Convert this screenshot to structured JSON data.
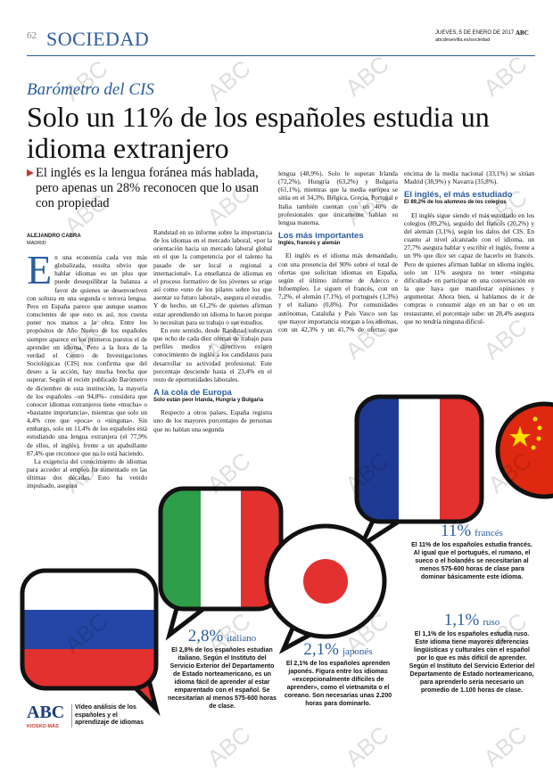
{
  "header": {
    "page_number": "62",
    "section": "SOCIEDAD",
    "date": "JUEVES, 5 DE ENERO DE 2017",
    "brand": "ABC",
    "url": "abcdesevilla.es/sociedad"
  },
  "kicker": "Barómetro del CIS",
  "headline": "Solo un 11% de los españoles estudia un idioma extranjero",
  "subhead": "El inglés es la lengua foránea más hablada, pero apenas un 28% reconocen que lo usan con propiedad",
  "byline": {
    "author": "ALEJANDRO CABRA",
    "place": "MADRID"
  },
  "watermark": "ABC",
  "body": {
    "dropcap": "E",
    "col1": [
      "n una economía cada vez más globalizada, resulta obvio que hablar idiomas es un plus que puede desequilibrar la balanza a favor de quienes se desenvuelven con soltura en una segunda o tercera lengua. Pero en España parece que aunque seamos conscientes de que esto es así, nos cuesta poner nos manos a la obra. Entre los propósitos de Año Nuevo de los españoles siempre aparece en los primeros puestos el de aprender un idioma. Pero a la hora de la verdad el Centro de Investigaciones Sociológicas (CIS) nos confirma que del deseo a la acción, hay mucha brecha que superar. Según el recién publicado Barómetro de diciembre de esta institución, la mayoría de los españoles –un 94,8%– considera que conocer idiomas extranjeros tiene «mucha» o «bastante importancia», mientras que solo un 4,4% cree que «poca» o «ninguna». Sin embargo, solo un 11,4% de los españoles está estudiando una lengua extranjera (el 77,9% de ellos, el inglés), frente a un apabullante 87,4% que reconoce que no lo está haciendo.",
      "La exigencia del conocimiento de idiomas para acceder al empleo ha aumentado en las últimas dos décadas. Esto ha venido impulsado, asegura"
    ],
    "col2": [
      "Randstad en su informe sobre la importancia de los idiomas en el mercado laboral, «por la orientación hacia un mercado laboral global en el que la competencia por el talento ha pasado de ser local o regional a internacional». La enseñanza de idiomas en el proceso formativo de los jóvenes se erige así como «uno de los pilares sobre los que asentar su futuro laboral», asegura el estudio. Y de hecho, un 61,2% de quienes afirman estar aprendiendo un idioma lo hacen porque lo necesitan para su trabajo o sus estudios.",
      "En este sentido, desde Randstad subrayan que ocho de cada diez ofertas de trabajo para perfiles medios y directivos exigen conocimiento de inglés a los candidatos para desarrollar su actividad profesional. Este porcentaje desciende hasta el 23,4% en el resto de oportunidades laborales."
    ],
    "section2": {
      "title": "A la cola de Europa",
      "subtitle": "Solo están peor Irlanda, Hungría y Bulgaria",
      "text": "Respecto a otros países, España registra uno de los mayores porcentajes de personas que no hablan una segunda"
    },
    "col3": "lengua (48,9%). Solo le superan Irlanda (72,2%), Hungría (63,2%) y Bulgaria (61,1%), mientras que la media europea se sitúa en el 34,3%. Bélgica, Grecia, Portugal e Italia también cuentan con un 40% de profesionales que únicamente hablan su lengua materna.",
    "section3": {
      "title": "Los más importantes",
      "subtitle": "Inglés, francés y alemán",
      "text": "El inglés es el idioma más demandado, con una presencia del 90% sobre el total de ofertas que solicitan idiomas en España, según el último informe de Adecco e Infoempleo. Le siguen el francés, con un 7,2%, el alemán (7,1%), el portugués (1,3%) y el italiano (0,8%). Por comunidades autónomas, Cataluña y País Vasco son las que mayor importancia otorgan a los idiomas, con un 42,3% y un 41,7% de ofertas que demandan idiomas, respectivamente. Por detrás de ellas, pero también por"
    },
    "col4": "encima de la media nacional (33,1%) se sitúan Madrid (38,9%) y Navarra (35,8%).",
    "section4": {
      "title": "El inglés, el más estudiado",
      "subtitle": "El 89,2% de los alumnos de los colegios",
      "text": "El inglés sigue siendo el más estudiado en los colegios (89,2%), seguido del francés (20,2%) y del alemán (3,1%), según los datos del CIS. En cuanto al nivel alcanzado con el idioma, un 27,7% asegura hablar y escribir el inglés, frente a un 9% que dice ser capaz de hacerlo en francés. Pero de quienes afirman hablar un idioma inglés, solo un 11% asegura no tener «ninguna dificultad» en participar en una conversación en la que haya que manifestar opiniones y argumentar. Ahora bien, si hablamos de ir de compras o consumir algo en un bar o en un restaurante, el porcentaje sube: un 28,4% asegura que no tendría ninguna dificul-"
    }
  },
  "stats": [
    {
      "value": "11%",
      "language": "francés",
      "text": "El 11% de los españoles estudia francés. Al igual que el portugués, el rumano, el sueco o el holandés se necesitarían al menos 575-600 horas de clase para dominar básicamente este idioma."
    },
    {
      "value": "1,1%",
      "language": "ruso",
      "text": "El 1,1% de los españoles estudia ruso. Este idioma tiene mayores diferencias lingüísticas y culturales con el español por lo que es más difícil de aprender. Según el Instituto del Servicio Exterior del Departamento de Estado norteamericano, para aprenderlo sería necesario un promedio de 1.100 horas de clase."
    },
    {
      "value": "2,8%",
      "language": "italiano",
      "text": "El 2,8% de los españoles estudian italiano. Según el Instituto del Servicio Exterior del Departamento de Estado norteamericano, es un idioma fácil de aprender al estar emparentado con el español. Se necesitarían al menos 575-600 horas de clase."
    },
    {
      "value": "2,1%",
      "language": "japonés",
      "text": "El 2,1% de los españoles aprenden japonés. Figura entre los idiomas «excepcionalmente difíciles de aprender», como el vietnamita o el coreano. Son necesarias unas 2.200 horas para dominarlo."
    }
  ],
  "footer": {
    "logo": "ABC",
    "kiosko": "KIOSKO·MÁS",
    "video": "Vídeo análisis de los españoles y el aprendizaje de idiomas"
  }
}
